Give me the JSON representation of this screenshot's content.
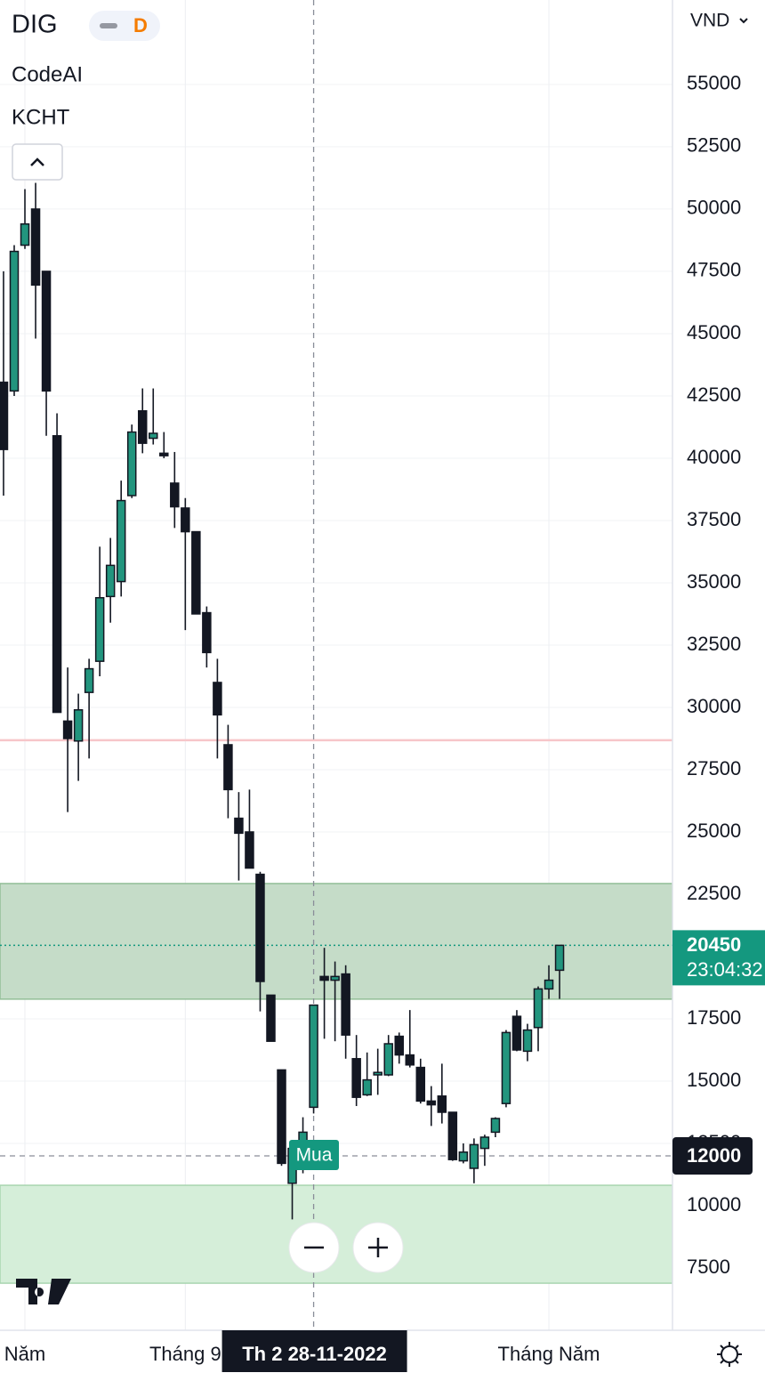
{
  "chart_data": {
    "type": "candlestick",
    "symbol": "DIG",
    "interval": "D",
    "indicators": [
      "CodeAI",
      "KCHT"
    ],
    "currency": "VND",
    "categories": [
      null,
      null,
      null,
      null,
      null,
      null,
      null,
      null,
      null,
      null,
      null,
      null,
      null,
      null,
      null,
      null,
      null,
      null,
      null,
      null,
      null,
      null,
      null,
      null,
      null,
      null,
      null,
      null,
      null,
      null,
      null,
      null,
      null,
      null,
      null,
      null,
      null,
      null,
      null,
      null,
      null,
      null,
      null,
      null,
      null,
      null,
      null,
      null,
      null,
      null,
      null,
      null,
      null
    ],
    "series": {
      "up_color": "#22957e",
      "down_color": "#131722",
      "open": [
        43050,
        42700,
        48550,
        50000,
        47500,
        40900,
        29450,
        28650,
        30600,
        31850,
        34450,
        35050,
        38500,
        41900,
        40800,
        40200,
        39000,
        38000,
        37050,
        33800,
        31000,
        28500,
        25550,
        25000,
        23300,
        18450,
        15450,
        10900,
        12600,
        13950,
        19200,
        19050,
        19300,
        15900,
        14450,
        15250,
        15250,
        16800,
        16050,
        15550,
        14200,
        14400,
        13750,
        11800,
        11500,
        12300,
        12950,
        14100,
        17600,
        16200,
        17150,
        18700,
        19450
      ],
      "high": [
        47500,
        48550,
        50800,
        51050,
        47500,
        41800,
        31600,
        30550,
        31950,
        36450,
        36800,
        39100,
        41350,
        42800,
        42800,
        41050,
        40250,
        38400,
        37050,
        34050,
        31950,
        29300,
        26600,
        26700,
        23400,
        18450,
        15450,
        12300,
        13550,
        18050,
        20350,
        19800,
        19650,
        16850,
        16150,
        16300,
        16850,
        16950,
        17850,
        15900,
        14800,
        15700,
        13750,
        12500,
        12700,
        12850,
        13550,
        17050,
        17850,
        17300,
        18800,
        19650,
        20450
      ],
      "low": [
        38500,
        42500,
        48400,
        44800,
        40900,
        29800,
        25800,
        27050,
        27950,
        31250,
        33400,
        34450,
        38400,
        40200,
        40550,
        40000,
        37200,
        33100,
        33750,
        31600,
        27950,
        25550,
        23050,
        23550,
        17800,
        16600,
        11600,
        9450,
        11300,
        13700,
        16700,
        16600,
        15900,
        14000,
        14400,
        14450,
        15200,
        15700,
        15550,
        14100,
        13200,
        13300,
        11800,
        11700,
        10900,
        11600,
        12750,
        13950,
        16200,
        15800,
        16200,
        18300,
        18300
      ],
      "close": [
        40350,
        48300,
        49400,
        46950,
        42700,
        29800,
        28750,
        29900,
        31550,
        34400,
        35700,
        38300,
        41050,
        40600,
        41000,
        40100,
        38050,
        37050,
        33750,
        32200,
        29700,
        26700,
        24950,
        23550,
        19000,
        16600,
        11700,
        12300,
        12950,
        18050,
        19050,
        19200,
        16850,
        14350,
        15050,
        15350,
        16500,
        16050,
        15650,
        14200,
        14050,
        13750,
        11850,
        12150,
        12450,
        12750,
        13500,
        16950,
        16250,
        17050,
        18700,
        19050,
        20450
      ]
    },
    "xlim": [
      -0.33,
      62.56
    ],
    "xticks": [
      {
        "value": 2,
        "label": "Năm"
      },
      {
        "value": 17,
        "label": "Tháng 9"
      },
      {
        "value": 51,
        "label": "Tháng Năm"
      }
    ],
    "ylim": [
      5000,
      58390
    ],
    "yticks": [
      7500,
      10000,
      12500,
      15000,
      17500,
      20000,
      22500,
      25000,
      27500,
      30000,
      32500,
      35000,
      37500,
      40000,
      42500,
      45000,
      47500,
      50000,
      52500,
      55000
    ],
    "grid": true,
    "zones": [
      {
        "from": 18290,
        "to": 22930,
        "color": "#c5dcc8",
        "border": "#93bf98"
      },
      {
        "from": 6890,
        "to": 10820,
        "color": "#d5eed9",
        "border": "#a9d5b0"
      }
    ],
    "hline": {
      "value": 28680,
      "color": "#f7c6c9"
    },
    "last_price": {
      "value": 20450,
      "countdown": "23:04:32",
      "color": "#14987f"
    },
    "crosshair": {
      "x": 29,
      "x_label": "Th 2 28-11-2022",
      "y": 12000
    },
    "signal_label": "Mua"
  }
}
